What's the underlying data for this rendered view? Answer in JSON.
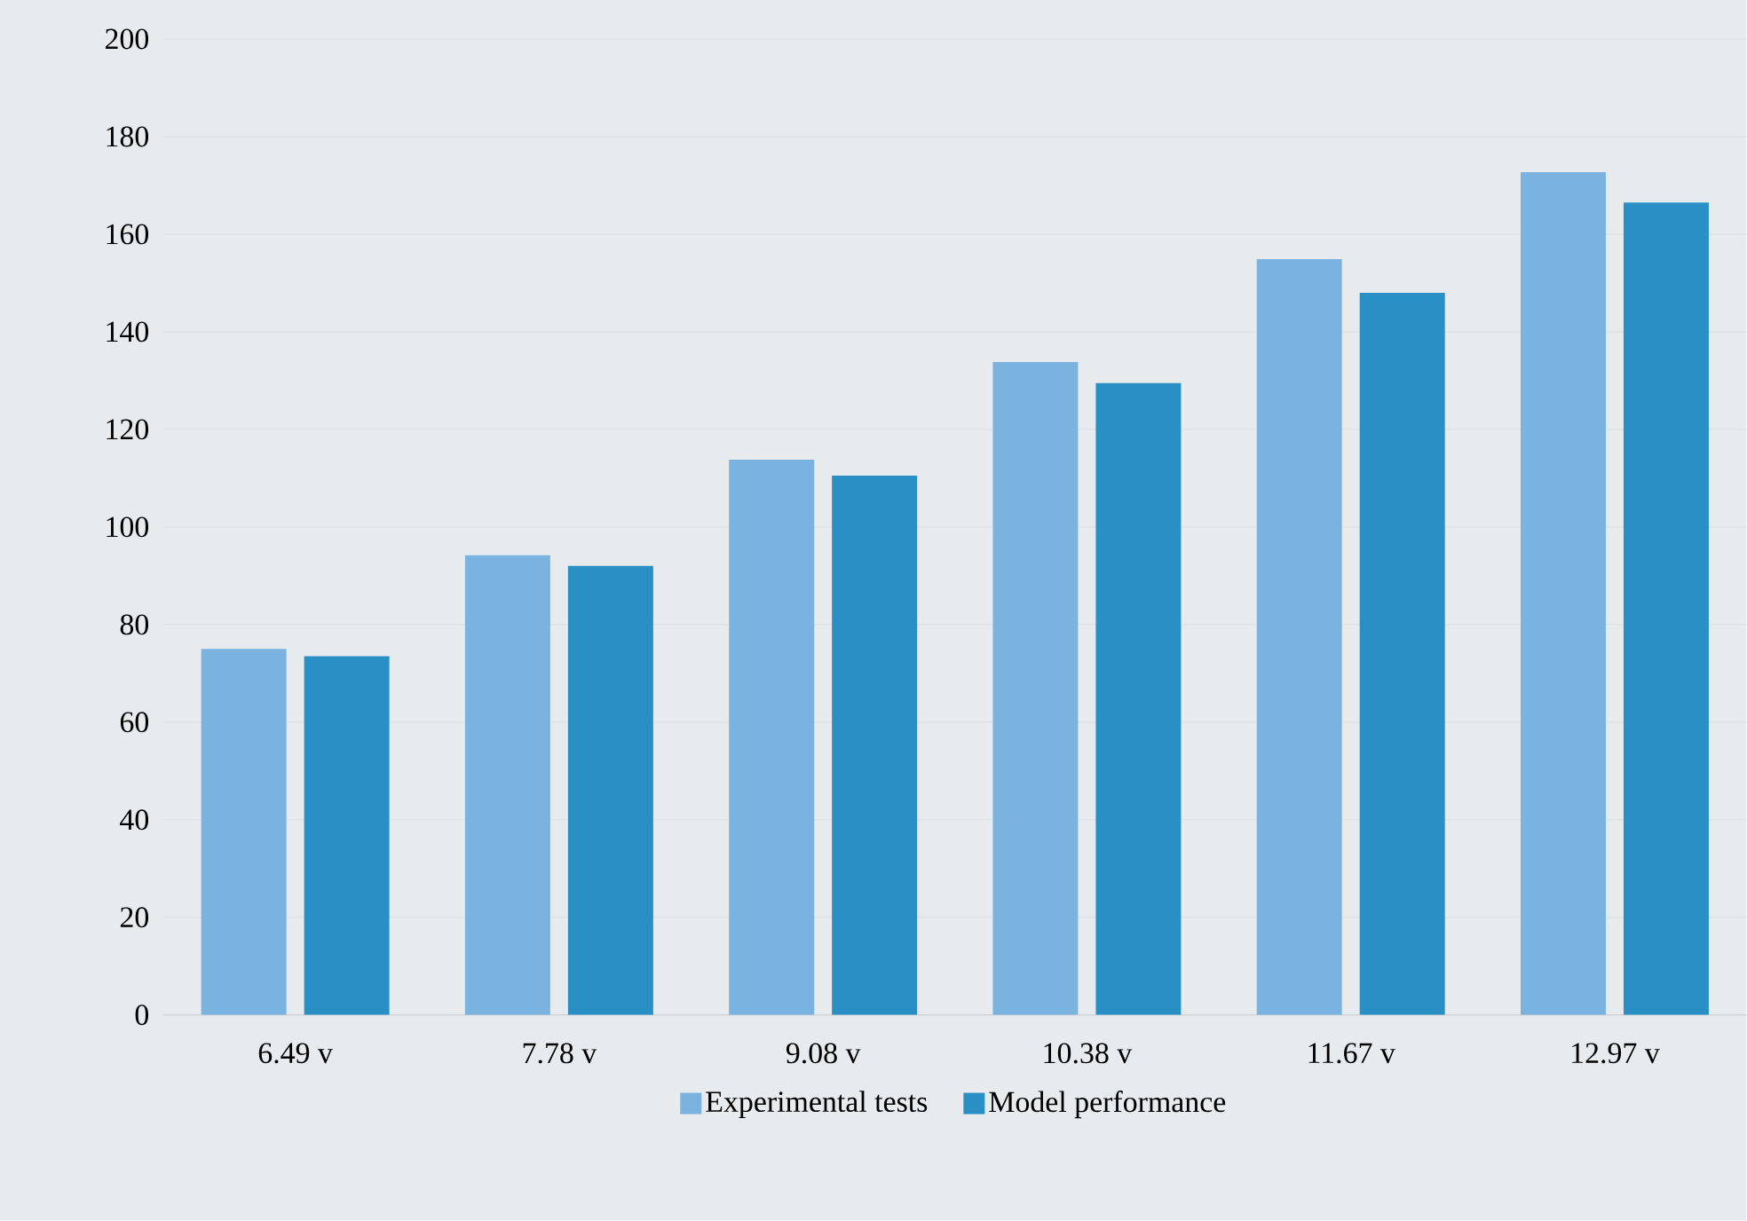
{
  "chart_data": {
    "type": "bar",
    "categories": [
      "6.49 v",
      "7.78 v",
      "9.08 v",
      "10.38 v",
      "11.67 v",
      "12.97 v"
    ],
    "series": [
      {
        "name": "Experimental tests",
        "color": "#7ab3e0",
        "values": [
          75,
          94.2,
          113.8,
          133.8,
          154.9,
          172.7
        ]
      },
      {
        "name": "Model performance",
        "color": "#2a8fc4",
        "values": [
          73.5,
          92,
          110.5,
          129.5,
          148,
          166.5
        ]
      }
    ],
    "ylim": [
      0,
      200
    ],
    "yticks": [
      0,
      20,
      40,
      60,
      80,
      100,
      120,
      140,
      160,
      180,
      200
    ],
    "grid": "y",
    "legend": "bottom"
  }
}
